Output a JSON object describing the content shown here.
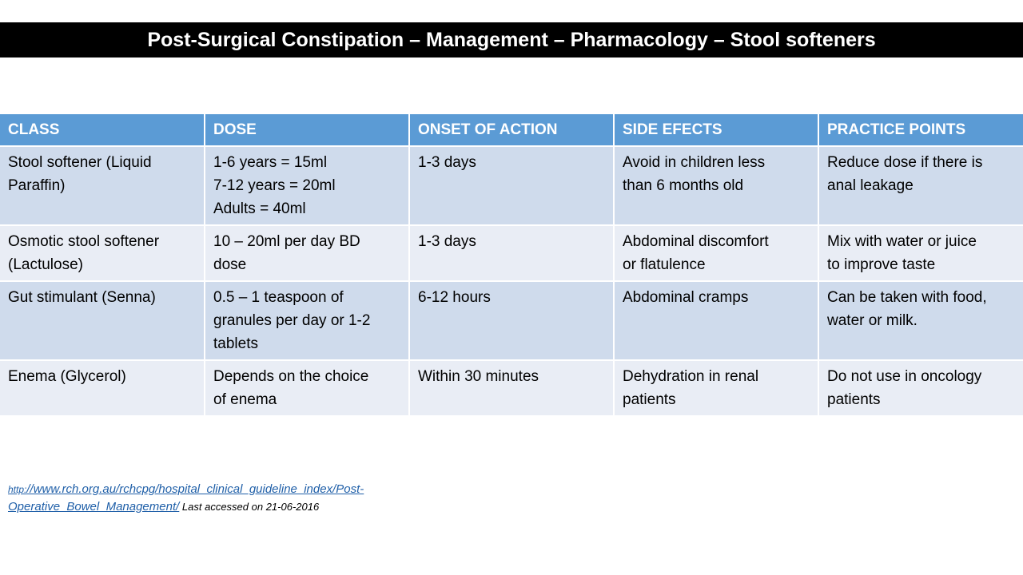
{
  "title": "Post-Surgical Constipation – Management – Pharmacology – Stool softeners",
  "table": {
    "headers": [
      "CLASS",
      "DOSE",
      "ONSET OF ACTION",
      "SIDE EFECTS",
      "PRACTICE POINTS"
    ],
    "rows": [
      {
        "class": [
          "Stool softener (Liquid",
          "Paraffin)"
        ],
        "dose": [
          "1-6 years = 15ml",
          "7-12 years = 20ml",
          "Adults = 40ml"
        ],
        "onset": [
          "1-3 days"
        ],
        "side": [
          "Avoid in children less",
          "than 6 months old"
        ],
        "practice": [
          "Reduce dose if there is",
          "anal leakage"
        ]
      },
      {
        "class": [
          "Osmotic stool softener",
          "(Lactulose)"
        ],
        "dose": [
          "10 – 20ml per day BD",
          "dose"
        ],
        "onset": [
          "1-3 days"
        ],
        "side": [
          "Abdominal discomfort",
          "or flatulence"
        ],
        "practice": [
          "Mix with water or juice",
          "to improve taste"
        ]
      },
      {
        "class": [
          "Gut stimulant (Senna)"
        ],
        "dose": [
          "0.5 – 1 teaspoon of",
          "granules per day or 1-2",
          "tablets"
        ],
        "onset": [
          "6-12 hours"
        ],
        "side": [
          "Abdominal cramps"
        ],
        "practice": [
          "Can be taken with food,",
          "water or milk."
        ]
      },
      {
        "class": [
          "Enema (Glycerol)"
        ],
        "dose": [
          "Depends on the choice",
          "of enema"
        ],
        "onset": [
          "Within 30 minutes"
        ],
        "side": [
          "Dehydration in renal",
          "patients"
        ],
        "practice": [
          "Do not use in oncology",
          "patients"
        ]
      }
    ]
  },
  "reference": {
    "link_prefix": "http:",
    "link_line1_rest": "//www.rch.org.au/rchcpg/hospital_clinical_guideline_index/Post-",
    "link_line2": "Operative_Bowel_Management/",
    "note": " Last accessed on 21-06-2016"
  }
}
